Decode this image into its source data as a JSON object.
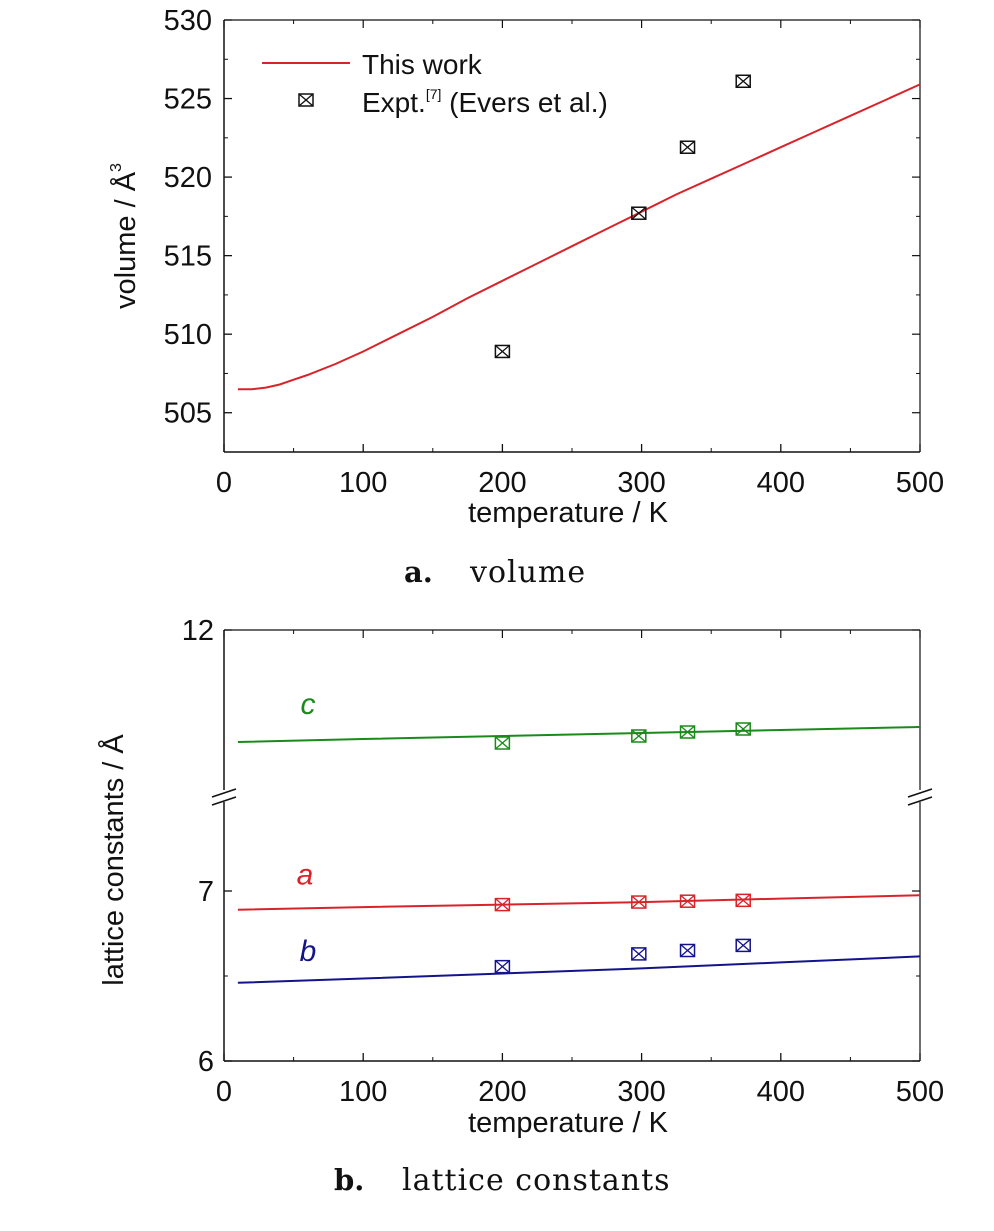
{
  "chart_data": [
    {
      "type": "line",
      "caption_letter": "a.",
      "caption_text": "volume",
      "xlabel": "temperature / K",
      "ylabel": "volume / Å",
      "ylabel_sup": "3",
      "xlim": [
        0,
        500
      ],
      "ylim": [
        502.5,
        530
      ],
      "xticks": [
        0,
        100,
        200,
        300,
        400,
        500
      ],
      "yticks": [
        505,
        510,
        515,
        520,
        525,
        530
      ],
      "grid": false,
      "legend": {
        "placement": "top-left",
        "entries": [
          {
            "label": "This work",
            "marker": "line",
            "color": "#d9232a"
          },
          {
            "label": "Expt.",
            "sup": "[7]",
            "suffix": " (Evers et al.)",
            "marker": "boxed-x",
            "color": "#111111"
          }
        ]
      },
      "series": [
        {
          "name": "This work",
          "kind": "line",
          "color": "#d9232a",
          "x": [
            10,
            20,
            30,
            40,
            50,
            60,
            80,
            100,
            125,
            150,
            175,
            200,
            225,
            250,
            275,
            300,
            325,
            350,
            375,
            400,
            425,
            450,
            475,
            500
          ],
          "y": [
            506.5,
            506.5,
            506.6,
            506.8,
            507.1,
            507.4,
            508.1,
            508.9,
            510.0,
            511.1,
            512.3,
            513.4,
            514.5,
            515.6,
            516.7,
            517.8,
            518.9,
            519.9,
            520.9,
            521.9,
            522.9,
            523.9,
            524.9,
            525.9
          ]
        },
        {
          "name": "Expt.",
          "kind": "scatter",
          "color": "#111111",
          "x": [
            200,
            298,
            333,
            373
          ],
          "y": [
            508.9,
            517.7,
            521.9,
            526.1
          ]
        }
      ]
    },
    {
      "type": "line",
      "caption_letter": "b.",
      "caption_text": "lattice constants",
      "xlabel": "temperature / K",
      "ylabel": "lattice constants / Å",
      "xlim": [
        0,
        500
      ],
      "xticks": [
        0,
        100,
        200,
        300,
        400,
        500
      ],
      "yticks": [
        6,
        7,
        12
      ],
      "axis_break": "between 7 and 12",
      "grid": false,
      "series": [
        {
          "name": "c",
          "color": "#1a8a1a",
          "line_x": [
            10,
            100,
            200,
            300,
            400,
            500
          ],
          "line_y": [
            10.88,
            10.91,
            10.94,
            10.97,
            11.0,
            11.03
          ],
          "expt_x": [
            200,
            298,
            333,
            373
          ],
          "expt_y": [
            10.87,
            10.94,
            10.98,
            11.01
          ]
        },
        {
          "name": "a",
          "color": "#d9232a",
          "line_x": [
            10,
            100,
            200,
            300,
            400,
            500
          ],
          "line_y": [
            6.89,
            6.905,
            6.92,
            6.935,
            6.955,
            6.975
          ],
          "expt_x": [
            200,
            298,
            333,
            373
          ],
          "expt_y": [
            6.92,
            6.935,
            6.94,
            6.945
          ]
        },
        {
          "name": "b",
          "color": "#14148a",
          "line_x": [
            10,
            100,
            200,
            300,
            400,
            500
          ],
          "line_y": [
            6.46,
            6.485,
            6.515,
            6.545,
            6.58,
            6.615
          ],
          "expt_x": [
            200,
            298,
            333,
            373
          ],
          "expt_y": [
            6.555,
            6.63,
            6.65,
            6.68
          ]
        }
      ]
    }
  ]
}
